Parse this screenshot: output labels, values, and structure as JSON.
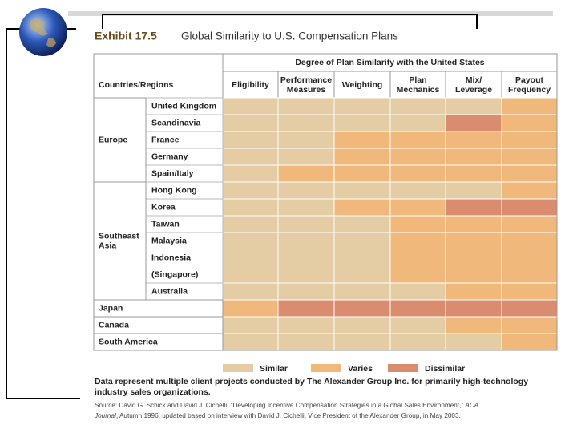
{
  "header": {
    "exhibit": "Exhibit 17.5",
    "title": "Global Similarity to U.S. Compensation Plans"
  },
  "table": {
    "group_header": "Degree of Plan Similarity with the United States",
    "row_header": "Countries/Regions",
    "columns": [
      [
        "Eligibility"
      ],
      [
        "Performance",
        "Measures"
      ],
      [
        "Weighting"
      ],
      [
        "Plan",
        "Mechanics"
      ],
      [
        "Mix/",
        "Leverage"
      ],
      [
        "Payout",
        "Frequency"
      ]
    ],
    "regions": [
      {
        "name": [
          "Europe"
        ],
        "rows": [
          {
            "countries": [
              "United Kingdom"
            ],
            "ratings": [
              "Similar",
              "Similar",
              "Similar",
              "Similar",
              "Similar",
              "Varies"
            ]
          },
          {
            "countries": [
              "Scandinavia"
            ],
            "ratings": [
              "Similar",
              "Similar",
              "Similar",
              "Similar",
              "Dissimilar",
              "Varies"
            ]
          },
          {
            "countries": [
              "France"
            ],
            "ratings": [
              "Similar",
              "Similar",
              "Varies",
              "Varies",
              "Varies",
              "Varies"
            ]
          },
          {
            "countries": [
              "Germany"
            ],
            "ratings": [
              "Similar",
              "Similar",
              "Varies",
              "Varies",
              "Varies",
              "Varies"
            ]
          },
          {
            "countries": [
              "Spain/Italy"
            ],
            "ratings": [
              "Similar",
              "Varies",
              "Varies",
              "Varies",
              "Varies",
              "Varies"
            ]
          }
        ]
      },
      {
        "name": [
          "Southeast",
          "Asia"
        ],
        "rows": [
          {
            "countries": [
              "Hong Kong"
            ],
            "ratings": [
              "Similar",
              "Similar",
              "Similar",
              "Similar",
              "Similar",
              "Varies"
            ]
          },
          {
            "countries": [
              "Korea"
            ],
            "ratings": [
              "Similar",
              "Similar",
              "Varies",
              "Varies",
              "Dissimilar",
              "Dissimilar"
            ]
          },
          {
            "countries": [
              "Taiwan"
            ],
            "ratings": [
              "Similar",
              "Similar",
              "Similar",
              "Varies",
              "Varies",
              "Varies"
            ]
          },
          {
            "countries": [
              "Malaysia",
              "Indonesia",
              "(Singapore)"
            ],
            "ratings": [
              "Similar",
              "Similar",
              "Similar",
              "Varies",
              "Varies",
              "Varies"
            ]
          },
          {
            "countries": [
              "Australia"
            ],
            "ratings": [
              "Similar",
              "Similar",
              "Similar",
              "Similar",
              "Varies",
              "Varies"
            ]
          }
        ]
      },
      {
        "name": [
          "Japan"
        ],
        "rows": [
          {
            "countries": [],
            "ratings": [
              "Varies",
              "Dissimilar",
              "Dissimilar",
              "Dissimilar",
              "Dissimilar",
              "Dissimilar"
            ]
          }
        ]
      },
      {
        "name": [
          "Canada"
        ],
        "rows": [
          {
            "countries": [],
            "ratings": [
              "Similar",
              "Similar",
              "Similar",
              "Similar",
              "Varies",
              "Varies"
            ]
          }
        ]
      },
      {
        "name": [
          "South America"
        ],
        "rows": [
          {
            "countries": [],
            "ratings": [
              "Similar",
              "Similar",
              "Similar",
              "Similar",
              "Similar",
              "Varies"
            ]
          }
        ]
      }
    ]
  },
  "legend": {
    "labels": [
      "Similar",
      "Varies",
      "Dissimilar"
    ],
    "colors": [
      "#e4cca4",
      "#f0b87a",
      "#d98d6e"
    ]
  },
  "note": [
    "Data represent multiple client projects conducted by The Alexander Group Inc. for primarily high-technology",
    "industry sales organizations."
  ],
  "source": [
    [
      "Source: David G. Schick and David J. Cichelli, “Developing Incentive Compensation Strategies in a Global Sales Environment,” ",
      "ACA"
    ],
    [
      "Journal",
      ", Autumn 1996; updated based on interview with David J. Cichelli, Vice President of the Alexander Group, in May 2003."
    ]
  ]
}
